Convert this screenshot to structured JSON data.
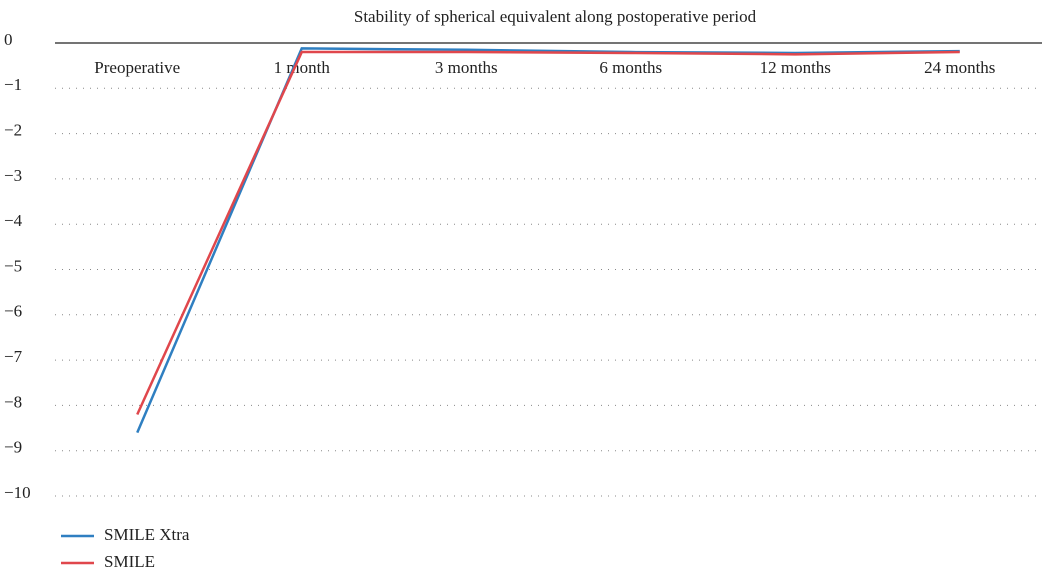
{
  "chart_data": {
    "type": "line",
    "title": "Stability of spherical equivalent along postoperative period",
    "categories": [
      "Preoperative",
      "1 month",
      "3 months",
      "6 months",
      "12 months",
      "24 months"
    ],
    "series": [
      {
        "name": "SMILE Xtra",
        "color": "#2f7fc1",
        "values": [
          -8.6,
          -0.12,
          -0.15,
          -0.2,
          -0.22,
          -0.18
        ]
      },
      {
        "name": "SMILE",
        "color": "#e0474c",
        "values": [
          -8.2,
          -0.2,
          -0.2,
          -0.22,
          -0.25,
          -0.2
        ]
      }
    ],
    "ylim": [
      -10,
      0
    ],
    "yticks": [
      0,
      {
        "value": -1,
        "label": "−1"
      },
      {
        "value": -2,
        "label": "−2"
      },
      {
        "value": -3,
        "label": "−3"
      },
      {
        "value": -4,
        "label": "−4"
      },
      {
        "value": -5,
        "label": "−5"
      },
      {
        "value": -6,
        "label": "−6"
      },
      {
        "value": -7,
        "label": "−7"
      },
      {
        "value": -8,
        "label": "−8"
      },
      {
        "value": -9,
        "label": "−9"
      },
      {
        "value": -10,
        "label": "−10"
      }
    ],
    "grid": true,
    "legend": "bottom-left"
  }
}
